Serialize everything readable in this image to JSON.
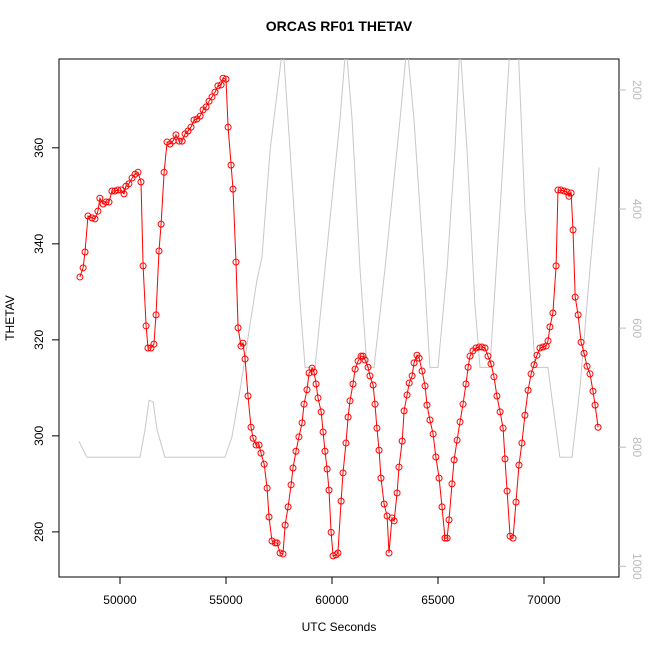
{
  "chart_data": {
    "type": "line",
    "title": "ORCAS RF01 THETAV",
    "x_label": "UTC Seconds",
    "y_label": "THETAV",
    "xlim": [
      47123,
      73538
    ],
    "ylim": [
      270.6,
      378.5
    ],
    "y2lim": [
      1018,
      148
    ],
    "xticks": [
      50000,
      55000,
      60000,
      65000,
      70000
    ],
    "yticks": [
      280,
      300,
      320,
      340,
      360
    ],
    "y2ticks": [
      200,
      400,
      600,
      800,
      1000
    ],
    "y2_color": "#bbbbbb",
    "series": [
      {
        "color": "#ff0000",
        "markers": true,
        "x": [
          48110,
          48260,
          48350,
          48490,
          48680,
          48820,
          48960,
          49050,
          49200,
          49340,
          49480,
          49620,
          49760,
          49900,
          50050,
          50190,
          50280,
          50420,
          50570,
          50710,
          50850,
          50990,
          51090,
          51230,
          51320,
          51460,
          51600,
          51700,
          51840,
          51940,
          52080,
          52220,
          52360,
          52500,
          52640,
          52790,
          52930,
          53070,
          53210,
          53350,
          53490,
          53630,
          53780,
          53920,
          54060,
          54200,
          54340,
          54480,
          54620,
          54770,
          54860,
          55000,
          55100,
          55240,
          55330,
          55470,
          55570,
          55710,
          55800,
          55900,
          56040,
          56180,
          56280,
          56420,
          56560,
          56650,
          56800,
          56940,
          57030,
          57170,
          57320,
          57410,
          57550,
          57690,
          57790,
          57930,
          58070,
          58160,
          58300,
          58440,
          58590,
          58680,
          58820,
          58920,
          59060,
          59150,
          59250,
          59340,
          59490,
          59580,
          59670,
          59770,
          59860,
          59960,
          60050,
          60190,
          60280,
          60430,
          60520,
          60660,
          60760,
          60850,
          60990,
          61090,
          61230,
          61370,
          61460,
          61560,
          61700,
          61790,
          61940,
          62030,
          62120,
          62220,
          62310,
          62460,
          62600,
          62690,
          62830,
          62930,
          63070,
          63160,
          63310,
          63400,
          63540,
          63640,
          63780,
          63870,
          64010,
          64110,
          64250,
          64390,
          64480,
          64620,
          64770,
          64900,
          65050,
          65190,
          65330,
          65430,
          65520,
          65660,
          65760,
          65900,
          66040,
          66180,
          66320,
          66420,
          66510,
          66650,
          66790,
          66940,
          67080,
          67220,
          67360,
          67500,
          67640,
          67780,
          67930,
          68070,
          68160,
          68260,
          68400,
          68540,
          68680,
          68820,
          68960,
          69100,
          69250,
          69390,
          69530,
          69670,
          69810,
          69950,
          70100,
          70190,
          70280,
          70420,
          70570,
          70660,
          70800,
          70940,
          71090,
          71180,
          71280,
          71370,
          71470,
          71610,
          71750,
          71890,
          72030,
          72170,
          72310,
          72410,
          72550
        ],
        "values": [
          333.1,
          335,
          338.3,
          345.8,
          345.4,
          345.2,
          346.8,
          349.5,
          348.3,
          348.7,
          348.7,
          351,
          351,
          351.2,
          351.2,
          350.4,
          352,
          352.5,
          353.7,
          354.5,
          354.9,
          352.9,
          335.4,
          322.9,
          318.3,
          318.3,
          319.1,
          325.2,
          338.5,
          344.1,
          354.9,
          361.2,
          360.8,
          361.4,
          362.7,
          361.4,
          361.4,
          362.9,
          363.5,
          364.3,
          365.8,
          366,
          366.6,
          367.9,
          368.5,
          369.7,
          370.6,
          371.6,
          372.9,
          373.1,
          374.5,
          374.3,
          364.3,
          356.4,
          351.4,
          336.2,
          322.5,
          318.7,
          319.3,
          316,
          308.3,
          301.8,
          299.5,
          298.1,
          298.1,
          296.4,
          294.1,
          289.1,
          283.1,
          278.1,
          277.7,
          277.7,
          275.6,
          275.4,
          281.4,
          285.2,
          289.8,
          293.3,
          296.8,
          299.8,
          302.7,
          306.6,
          309.6,
          313.1,
          314.1,
          313.3,
          310.8,
          307.9,
          305,
          300.8,
          296.8,
          293.1,
          288.7,
          279.9,
          275,
          275.2,
          275.6,
          286.4,
          292.3,
          298.5,
          303.9,
          307.3,
          310.8,
          313.9,
          315.6,
          316.6,
          316.6,
          315.8,
          314.3,
          312.5,
          310.6,
          306.6,
          301.6,
          297,
          291.2,
          285.8,
          283.3,
          275.6,
          282.9,
          282.3,
          288.1,
          293.5,
          298.9,
          305.2,
          308.5,
          311,
          312.5,
          315.2,
          316.8,
          316.2,
          313.5,
          310.4,
          306.4,
          303.3,
          300.4,
          295.6,
          291.2,
          285.2,
          278.7,
          278.7,
          282.5,
          290,
          295,
          299.1,
          302.9,
          306.6,
          310.8,
          314.3,
          316.6,
          317.7,
          318.3,
          318.5,
          318.5,
          318.3,
          316.6,
          315,
          312.3,
          308.3,
          305,
          301.6,
          295.2,
          288.5,
          279.1,
          278.7,
          286.2,
          293.9,
          298.5,
          304.3,
          309.5,
          312.9,
          314.8,
          316.8,
          318.3,
          318.5,
          318.7,
          319.8,
          322.7,
          325.6,
          335.4,
          351.2,
          351.2,
          351,
          350.8,
          349.9,
          350.6,
          342.9,
          328.9,
          325.2,
          319.5,
          317.2,
          314.5,
          312.9,
          309.3,
          306.4,
          301.8
        ]
      },
      {
        "color": "#c8c8c8",
        "markers": false,
        "axis": "y2",
        "x": [
          48060,
          48440,
          50940,
          51180,
          51370,
          51560,
          51750,
          52120,
          54950,
          55280,
          55660,
          55900,
          56130,
          56460,
          56700,
          57080,
          57690,
          58020,
          58490,
          58730,
          59200,
          59670,
          60380,
          60660,
          60950,
          61320,
          61650,
          61980,
          62500,
          63210,
          63540,
          63870,
          64340,
          64620,
          65000,
          65430,
          65800,
          66040,
          66370,
          66740,
          66980,
          67450,
          67930,
          68400,
          68780,
          69100,
          69580,
          70190,
          70380,
          70750,
          71320,
          71700,
          72170,
          72600
        ],
        "values": [
          790,
          817,
          817,
          771,
          721,
          724,
          771,
          817,
          817,
          783,
          704,
          650,
          595,
          520,
          480,
          301,
          124,
          300,
          556,
          666,
          666,
          500,
          250,
          124,
          250,
          500,
          666,
          666,
          500,
          250,
          124,
          250,
          500,
          666,
          666,
          500,
          300,
          124,
          300,
          560,
          666,
          666,
          400,
          124,
          124,
          400,
          666,
          666,
          720,
          817,
          817,
          700,
          500,
          330
        ]
      }
    ]
  }
}
